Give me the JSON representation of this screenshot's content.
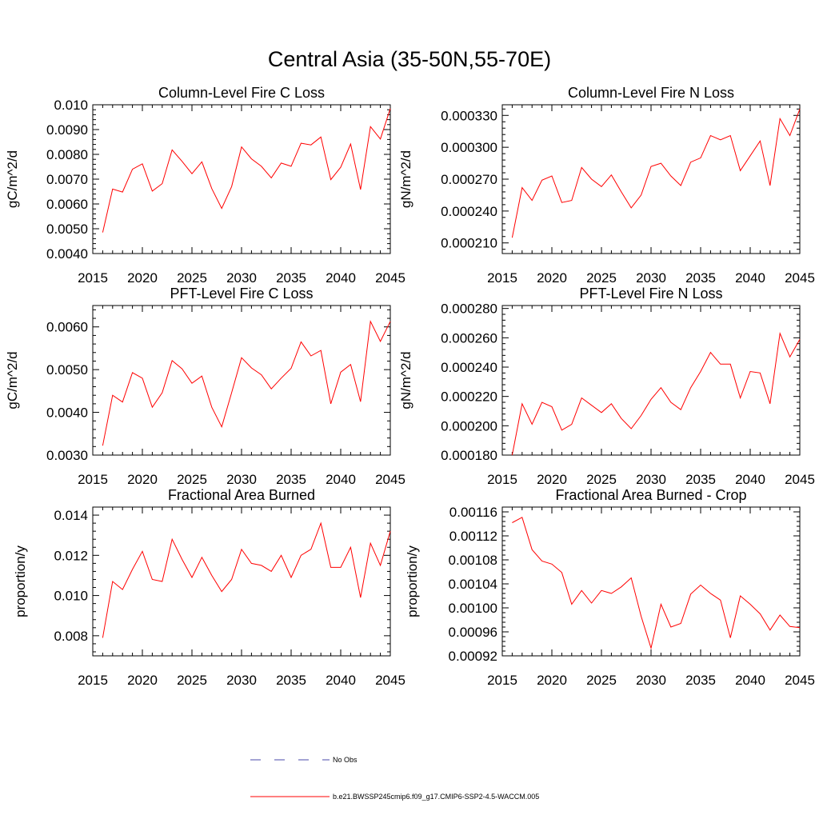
{
  "figure_title": "Central Asia (35-50N,55-70E)",
  "colors": {
    "model_line": "#ff0000",
    "obs_line": "#4a4aa8",
    "axis": "#000000"
  },
  "legend": {
    "entries": [
      {
        "label": "No Obs",
        "style": "dashed",
        "color": "#4a4aa8"
      },
      {
        "label": "b.e21.BWSSP245cmip6.f09_g17.CMIP6-SSP2-4.5-WACCM.005",
        "style": "solid",
        "color": "#ff0000"
      }
    ],
    "placement": "bottom-center"
  },
  "chart_data": [
    {
      "type": "line",
      "title": "Column-Level Fire C Loss",
      "xlabel": "",
      "ylabel": "gC/m^2/d",
      "xlim": [
        2015,
        2045
      ],
      "ylim": [
        0.004,
        0.01
      ],
      "xticks": [
        2015,
        2020,
        2025,
        2030,
        2035,
        2040,
        2045
      ],
      "yticks": [
        0.004,
        0.005,
        0.006,
        0.007,
        0.008,
        0.009,
        0.01
      ],
      "ytick_labels": [
        "0.0040",
        "0.0050",
        "0.0060",
        "0.0070",
        "0.0080",
        "0.0090",
        "0.010"
      ],
      "x": [
        2016,
        2017,
        2018,
        2019,
        2020,
        2021,
        2022,
        2023,
        2024,
        2025,
        2026,
        2027,
        2028,
        2029,
        2030,
        2031,
        2032,
        2033,
        2034,
        2035,
        2036,
        2037,
        2038,
        2039,
        2040,
        2041,
        2042,
        2043,
        2044,
        2045
      ],
      "series": [
        {
          "name": "b.e21.BWSSP245cmip6.f09_g17.CMIP6-SSP2-4.5-WACCM.005",
          "values": [
            0.00485,
            0.0066,
            0.00648,
            0.0074,
            0.00762,
            0.00652,
            0.00682,
            0.00818,
            0.00772,
            0.00722,
            0.0077,
            0.00662,
            0.00582,
            0.0067,
            0.0083,
            0.00782,
            0.00752,
            0.00705,
            0.00765,
            0.00752,
            0.00845,
            0.00838,
            0.0087,
            0.00698,
            0.00748,
            0.00842,
            0.00658,
            0.00912,
            0.00862,
            0.00985
          ]
        }
      ]
    },
    {
      "type": "line",
      "title": "Column-Level Fire N Loss",
      "xlabel": "",
      "ylabel": "gN/m^2/d",
      "xlim": [
        2015,
        2045
      ],
      "ylim": [
        0.0002,
        0.00034
      ],
      "xticks": [
        2015,
        2020,
        2025,
        2030,
        2035,
        2040,
        2045
      ],
      "yticks": [
        0.00021,
        0.00024,
        0.00027,
        0.0003,
        0.00033
      ],
      "ytick_labels": [
        "0.000210",
        "0.000240",
        "0.000270",
        "0.000300",
        "0.000330"
      ],
      "x": [
        2016,
        2017,
        2018,
        2019,
        2020,
        2021,
        2022,
        2023,
        2024,
        2025,
        2026,
        2027,
        2028,
        2029,
        2030,
        2031,
        2032,
        2033,
        2034,
        2035,
        2036,
        2037,
        2038,
        2039,
        2040,
        2041,
        2042,
        2043,
        2044,
        2045
      ],
      "series": [
        {
          "name": "b.e21.BWSSP245cmip6.f09_g17.CMIP6-SSP2-4.5-WACCM.005",
          "values": [
            0.000215,
            0.000262,
            0.00025,
            0.000269,
            0.000273,
            0.000248,
            0.00025,
            0.000281,
            0.00027,
            0.000263,
            0.000274,
            0.000258,
            0.000243,
            0.000255,
            0.000282,
            0.000285,
            0.000273,
            0.000264,
            0.000286,
            0.00029,
            0.000311,
            0.000307,
            0.000311,
            0.000278,
            0.000292,
            0.000306,
            0.000264,
            0.000327,
            0.000311,
            0.000336
          ]
        }
      ]
    },
    {
      "type": "line",
      "title": "PFT-Level Fire C Loss",
      "xlabel": "",
      "ylabel": "gC/m^2/d",
      "xlim": [
        2015,
        2045
      ],
      "ylim": [
        0.003,
        0.0065
      ],
      "xticks": [
        2015,
        2020,
        2025,
        2030,
        2035,
        2040,
        2045
      ],
      "yticks": [
        0.003,
        0.004,
        0.005,
        0.006
      ],
      "ytick_labels": [
        "0.0030",
        "0.0040",
        "0.0050",
        "0.0060"
      ],
      "x": [
        2016,
        2017,
        2018,
        2019,
        2020,
        2021,
        2022,
        2023,
        2024,
        2025,
        2026,
        2027,
        2028,
        2029,
        2030,
        2031,
        2032,
        2033,
        2034,
        2035,
        2036,
        2037,
        2038,
        2039,
        2040,
        2041,
        2042,
        2043,
        2044,
        2045
      ],
      "series": [
        {
          "name": "b.e21.BWSSP245cmip6.f09_g17.CMIP6-SSP2-4.5-WACCM.005",
          "values": [
            0.00322,
            0.0044,
            0.00424,
            0.00493,
            0.0048,
            0.00412,
            0.00446,
            0.00521,
            0.00502,
            0.00468,
            0.00485,
            0.00412,
            0.00366,
            0.00446,
            0.00528,
            0.00504,
            0.00488,
            0.00455,
            0.0048,
            0.00503,
            0.00565,
            0.00532,
            0.00545,
            0.0042,
            0.00494,
            0.00512,
            0.00425,
            0.00613,
            0.00566,
            0.00613
          ]
        }
      ]
    },
    {
      "type": "line",
      "title": "PFT-Level Fire N Loss",
      "xlabel": "",
      "ylabel": "gN/m^2/d",
      "xlim": [
        2015,
        2045
      ],
      "ylim": [
        0.00018,
        0.000282
      ],
      "xticks": [
        2015,
        2020,
        2025,
        2030,
        2035,
        2040,
        2045
      ],
      "yticks": [
        0.00018,
        0.0002,
        0.00022,
        0.00024,
        0.00026,
        0.00028
      ],
      "ytick_labels": [
        "0.000180",
        "0.000200",
        "0.000220",
        "0.000240",
        "0.000260",
        "0.000280"
      ],
      "x": [
        2016,
        2017,
        2018,
        2019,
        2020,
        2021,
        2022,
        2023,
        2024,
        2025,
        2026,
        2027,
        2028,
        2029,
        2030,
        2031,
        2032,
        2033,
        2034,
        2035,
        2036,
        2037,
        2038,
        2039,
        2040,
        2041,
        2042,
        2043,
        2044,
        2045
      ],
      "series": [
        {
          "name": "b.e21.BWSSP245cmip6.f09_g17.CMIP6-SSP2-4.5-WACCM.005",
          "values": [
            0.00018,
            0.000215,
            0.000201,
            0.000216,
            0.000213,
            0.000197,
            0.000201,
            0.000219,
            0.000214,
            0.000209,
            0.000215,
            0.000205,
            0.000198,
            0.000207,
            0.000218,
            0.000226,
            0.000216,
            0.000211,
            0.000226,
            0.000237,
            0.00025,
            0.000242,
            0.000242,
            0.000219,
            0.000237,
            0.000236,
            0.000215,
            0.000263,
            0.000247,
            0.000259
          ]
        }
      ]
    },
    {
      "type": "line",
      "title": "Fractional Area Burned",
      "xlabel": "",
      "ylabel": "proportion/y",
      "xlim": [
        2015,
        2045
      ],
      "ylim": [
        0.007,
        0.0144
      ],
      "xticks": [
        2015,
        2020,
        2025,
        2030,
        2035,
        2040,
        2045
      ],
      "yticks": [
        0.008,
        0.01,
        0.012,
        0.014
      ],
      "ytick_labels": [
        "0.008",
        "0.010",
        "0.012",
        "0.014"
      ],
      "x": [
        2016,
        2017,
        2018,
        2019,
        2020,
        2021,
        2022,
        2023,
        2024,
        2025,
        2026,
        2027,
        2028,
        2029,
        2030,
        2031,
        2032,
        2033,
        2034,
        2035,
        2036,
        2037,
        2038,
        2039,
        2040,
        2041,
        2042,
        2043,
        2044,
        2045
      ],
      "series": [
        {
          "name": "b.e21.BWSSP245cmip6.f09_g17.CMIP6-SSP2-4.5-WACCM.005",
          "values": [
            0.0079,
            0.0107,
            0.0103,
            0.0113,
            0.0122,
            0.0108,
            0.0107,
            0.0128,
            0.0118,
            0.0109,
            0.0119,
            0.011,
            0.0102,
            0.0108,
            0.0123,
            0.0116,
            0.0115,
            0.0112,
            0.012,
            0.0109,
            0.012,
            0.0123,
            0.0136,
            0.0114,
            0.0114,
            0.0124,
            0.0099,
            0.0126,
            0.0115,
            0.0132
          ]
        }
      ]
    },
    {
      "type": "line",
      "title": "Fractional Area Burned - Crop",
      "xlabel": "",
      "ylabel": "proportion/y",
      "xlim": [
        2015,
        2045
      ],
      "ylim": [
        0.00092,
        0.001168
      ],
      "xticks": [
        2015,
        2020,
        2025,
        2030,
        2035,
        2040,
        2045
      ],
      "yticks": [
        0.00092,
        0.00096,
        0.001,
        0.00104,
        0.00108,
        0.00112,
        0.00116
      ],
      "ytick_labels": [
        "0.00092",
        "0.00096",
        "0.00100",
        "0.00104",
        "0.00108",
        "0.00112",
        "0.00116"
      ],
      "x": [
        2016,
        2017,
        2018,
        2019,
        2020,
        2021,
        2022,
        2023,
        2024,
        2025,
        2026,
        2027,
        2028,
        2029,
        2030,
        2031,
        2032,
        2033,
        2034,
        2035,
        2036,
        2037,
        2038,
        2039,
        2040,
        2041,
        2042,
        2043,
        2044,
        2045
      ],
      "series": [
        {
          "name": "b.e21.BWSSP245cmip6.f09_g17.CMIP6-SSP2-4.5-WACCM.005",
          "values": [
            0.001142,
            0.001151,
            0.001097,
            0.001078,
            0.001073,
            0.001059,
            0.001006,
            0.001029,
            0.001008,
            0.001029,
            0.001024,
            0.001035,
            0.00105,
            0.000986,
            0.000933,
            0.001006,
            0.000968,
            0.000974,
            0.001023,
            0.001038,
            0.001024,
            0.001013,
            0.00095,
            0.00102,
            0.001006,
            0.00099,
            0.000963,
            0.000988,
            0.000969,
            0.000967
          ]
        }
      ]
    }
  ]
}
